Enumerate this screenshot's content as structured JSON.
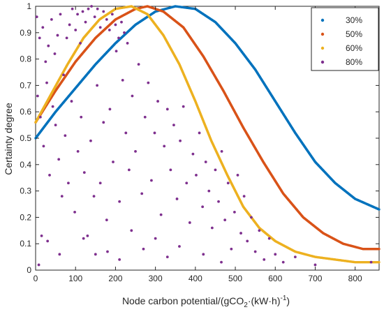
{
  "chart_data": {
    "type": "scatter",
    "title": "",
    "xlabel_parts": [
      "Node carbon potential/(gCO",
      "2",
      "·(kW·h)",
      "-1",
      ")"
    ],
    "ylabel": "Certainty degree",
    "xlim": [
      0,
      860
    ],
    "ylim": [
      0,
      1
    ],
    "x_ticks": [
      0,
      100,
      200,
      300,
      400,
      500,
      600,
      700,
      800
    ],
    "y_ticks": [
      0,
      0.1,
      0.2,
      0.3,
      0.4,
      0.5,
      0.6,
      0.7,
      0.8,
      0.9,
      1
    ],
    "x_tick_labels": [
      "0",
      "100",
      "200",
      "300",
      "400",
      "500",
      "600",
      "700",
      "800"
    ],
    "y_tick_labels": [
      "0",
      "0.1",
      "0.2",
      "0.3",
      "0.4",
      "0.5",
      "0.6",
      "0.7",
      "0.8",
      "0.9",
      "1"
    ],
    "grid": false,
    "legend_position": "top-right",
    "series": [
      {
        "name": "30%",
        "color": "#0072BD",
        "points": [
          [
            0,
            0.5
          ],
          [
            50,
            0.6
          ],
          [
            100,
            0.69
          ],
          [
            150,
            0.78
          ],
          [
            200,
            0.86
          ],
          [
            250,
            0.93
          ],
          [
            300,
            0.98
          ],
          [
            350,
            1.0
          ],
          [
            400,
            0.99
          ],
          [
            450,
            0.94
          ],
          [
            500,
            0.86
          ],
          [
            550,
            0.76
          ],
          [
            600,
            0.64
          ],
          [
            650,
            0.52
          ],
          [
            700,
            0.41
          ],
          [
            750,
            0.33
          ],
          [
            800,
            0.27
          ],
          [
            860,
            0.23
          ]
        ]
      },
      {
        "name": "50%",
        "color": "#D95319",
        "points": [
          [
            0,
            0.56
          ],
          [
            50,
            0.68
          ],
          [
            100,
            0.79
          ],
          [
            150,
            0.88
          ],
          [
            200,
            0.95
          ],
          [
            250,
            0.99
          ],
          [
            280,
            1.0
          ],
          [
            320,
            0.98
          ],
          [
            370,
            0.92
          ],
          [
            420,
            0.81
          ],
          [
            470,
            0.68
          ],
          [
            520,
            0.54
          ],
          [
            570,
            0.41
          ],
          [
            620,
            0.29
          ],
          [
            670,
            0.2
          ],
          [
            720,
            0.14
          ],
          [
            770,
            0.1
          ],
          [
            820,
            0.08
          ],
          [
            860,
            0.08
          ]
        ]
      },
      {
        "name": "60%",
        "color": "#EDB120",
        "points": [
          [
            0,
            0.56
          ],
          [
            40,
            0.67
          ],
          [
            80,
            0.78
          ],
          [
            120,
            0.88
          ],
          [
            160,
            0.95
          ],
          [
            200,
            0.99
          ],
          [
            240,
            1.0
          ],
          [
            280,
            0.97
          ],
          [
            320,
            0.89
          ],
          [
            360,
            0.78
          ],
          [
            400,
            0.64
          ],
          [
            440,
            0.49
          ],
          [
            480,
            0.36
          ],
          [
            520,
            0.24
          ],
          [
            560,
            0.16
          ],
          [
            600,
            0.11
          ],
          [
            650,
            0.07
          ],
          [
            700,
            0.05
          ],
          [
            750,
            0.04
          ],
          [
            800,
            0.03
          ],
          [
            860,
            0.03
          ]
        ]
      },
      {
        "name": "80%",
        "color": "#7E2F8E",
        "points": [
          [
            3,
            0.96
          ],
          [
            10,
            0.88
          ],
          [
            18,
            0.92
          ],
          [
            25,
            0.79
          ],
          [
            32,
            0.85
          ],
          [
            40,
            0.95
          ],
          [
            48,
            0.82
          ],
          [
            55,
            0.89
          ],
          [
            62,
            0.97
          ],
          [
            70,
            0.74
          ],
          [
            78,
            0.88
          ],
          [
            85,
            0.93
          ],
          [
            92,
            0.99
          ],
          [
            100,
            0.91
          ],
          [
            105,
            0.97
          ],
          [
            112,
            0.86
          ],
          [
            118,
            0.98
          ],
          [
            125,
            0.94
          ],
          [
            132,
            0.99
          ],
          [
            140,
            1.0
          ],
          [
            148,
            0.96
          ],
          [
            155,
            0.99
          ],
          [
            162,
            0.92
          ],
          [
            170,
            0.98
          ],
          [
            178,
            0.95
          ],
          [
            185,
            0.91
          ],
          [
            192,
            0.97
          ],
          [
            200,
            0.93
          ],
          [
            208,
            0.88
          ],
          [
            215,
            0.94
          ],
          [
            222,
            0.9
          ],
          [
            230,
            0.86
          ],
          [
            5,
            0.66
          ],
          [
            12,
            0.58
          ],
          [
            20,
            0.47
          ],
          [
            28,
            0.71
          ],
          [
            35,
            0.36
          ],
          [
            43,
            0.62
          ],
          [
            50,
            0.55
          ],
          [
            58,
            0.42
          ],
          [
            66,
            0.28
          ],
          [
            74,
            0.51
          ],
          [
            82,
            0.33
          ],
          [
            90,
            0.64
          ],
          [
            98,
            0.22
          ],
          [
            106,
            0.45
          ],
          [
            114,
            0.58
          ],
          [
            122,
            0.37
          ],
          [
            130,
            0.13
          ],
          [
            138,
            0.49
          ],
          [
            146,
            0.28
          ],
          [
            154,
            0.7
          ],
          [
            162,
            0.33
          ],
          [
            170,
            0.56
          ],
          [
            178,
            0.19
          ],
          [
            186,
            0.61
          ],
          [
            194,
            0.41
          ],
          [
            202,
            0.83
          ],
          [
            210,
            0.26
          ],
          [
            218,
            0.72
          ],
          [
            226,
            0.52
          ],
          [
            234,
            0.38
          ],
          [
            242,
            0.66
          ],
          [
            250,
            0.45
          ],
          [
            258,
            0.78
          ],
          [
            266,
            0.29
          ],
          [
            274,
            0.58
          ],
          [
            282,
            0.71
          ],
          [
            290,
            0.34
          ],
          [
            298,
            0.52
          ],
          [
            306,
            0.64
          ],
          [
            314,
            0.21
          ],
          [
            322,
            0.47
          ],
          [
            330,
            0.61
          ],
          [
            338,
            0.38
          ],
          [
            346,
            0.55
          ],
          [
            354,
            0.27
          ],
          [
            362,
            0.49
          ],
          [
            370,
            0.62
          ],
          [
            378,
            0.33
          ],
          [
            386,
            0.18
          ],
          [
            394,
            0.44
          ],
          [
            402,
            0.36
          ],
          [
            410,
            0.52
          ],
          [
            418,
            0.24
          ],
          [
            426,
            0.41
          ],
          [
            434,
            0.3
          ],
          [
            442,
            0.16
          ],
          [
            450,
            0.38
          ],
          [
            458,
            0.26
          ],
          [
            466,
            0.45
          ],
          [
            474,
            0.19
          ],
          [
            482,
            0.33
          ],
          [
            490,
            0.08
          ],
          [
            498,
            0.22
          ],
          [
            506,
            0.36
          ],
          [
            514,
            0.14
          ],
          [
            522,
            0.28
          ],
          [
            530,
            0.11
          ],
          [
            540,
            0.2
          ],
          [
            550,
            0.07
          ],
          [
            560,
            0.15
          ],
          [
            572,
            0.04
          ],
          [
            585,
            0.12
          ],
          [
            600,
            0.06
          ],
          [
            620,
            0.03
          ],
          [
            650,
            0.05
          ],
          [
            700,
            0.02
          ],
          [
            840,
            0.03
          ],
          [
            15,
            0.13
          ],
          [
            30,
            0.11
          ],
          [
            8,
            0.02
          ],
          [
            60,
            0.06
          ],
          [
            120,
            0.12
          ],
          [
            150,
            0.06
          ],
          [
            180,
            0.07
          ],
          [
            210,
            0.04
          ],
          [
            240,
            0.15
          ],
          [
            270,
            0.08
          ],
          [
            300,
            0.12
          ],
          [
            330,
            0.05
          ],
          [
            360,
            0.09
          ],
          [
            420,
            0.06
          ],
          [
            465,
            0.03
          ]
        ]
      }
    ]
  }
}
